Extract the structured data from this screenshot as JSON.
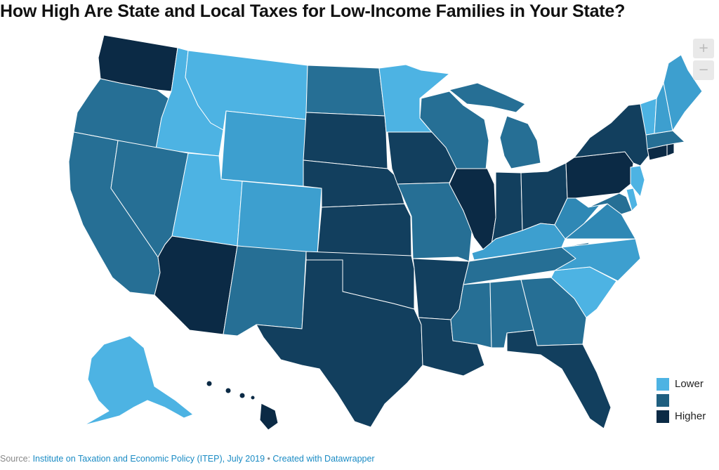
{
  "title": "How High Are State and Local Taxes for Low-Income Families in Your State?",
  "zoom": {
    "in_label": "+",
    "out_label": "−"
  },
  "legend": [
    {
      "label": "Lower",
      "color": "#4db3e3"
    },
    {
      "label": "",
      "color": "#1f5f80"
    },
    {
      "label": "Higher",
      "color": "#0b2a45"
    }
  ],
  "palette": {
    "lightest": "#4db3e3",
    "light": "#3d9fcf",
    "medium_light": "#2f88b5",
    "medium": "#266f95",
    "medium_dark": "#1b5677",
    "dark": "#123f5e",
    "darkest": "#0b2a45"
  },
  "footer": {
    "prefix": "Source: ",
    "source": "Institute on Taxation and Economic Policy (ITEP), July 2019",
    "separator": " • ",
    "credit": "Created with Datawrapper"
  }
}
